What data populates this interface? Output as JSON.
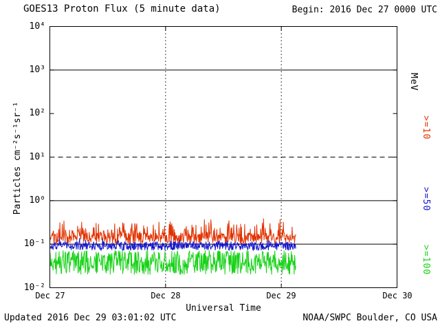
{
  "header": {
    "title": "GOES13 Proton Flux (5 minute data)",
    "begin_label": "Begin: 2016 Dec 27 0000 UTC"
  },
  "footer": {
    "updated": "Updated 2016 Dec 29 03:01:02 UTC",
    "source": "NOAA/SWPC Boulder, CO USA"
  },
  "right_axis": {
    "unit_label": "MeV"
  },
  "chart_data": {
    "type": "line",
    "title": "GOES13 Proton Flux (5 minute data)",
    "xlabel": "Universal Time",
    "ylabel": "Particles cm⁻²s⁻¹sr⁻¹",
    "y_scale": "log",
    "ylim": [
      0.01,
      10000
    ],
    "y_ticks": [
      "10⁴",
      "10³",
      "10²",
      "10¹",
      "10⁰",
      "10⁻¹",
      "10⁻²"
    ],
    "x_ticks": [
      "Dec 27",
      "Dec 28",
      "Dec 29",
      "Dec 30"
    ],
    "x_start": "2016 Dec 27 0000 UTC",
    "x_days": 3,
    "data_duration_hours": 51,
    "cadence_minutes": 5,
    "points_per_series": 612,
    "grid": {
      "solid_y": [
        1000,
        1,
        0.1
      ],
      "dashed_y": [
        10
      ],
      "dotted_x_days": [
        1,
        2
      ]
    },
    "series": [
      {
        "name": "Protons >=10 MeV",
        "label": ">=10",
        "color": "#e23200",
        "approx_flux_range": [
          0.08,
          0.42
        ],
        "log10_base": -0.86,
        "log10_jitter": 0.13,
        "spike_prob": 0.3,
        "spike_amp": 0.35,
        "seed": 101
      },
      {
        "name": "Protons >=50 MeV",
        "label": ">=50",
        "color": "#1414cc",
        "approx_flux_range": [
          0.06,
          0.13
        ],
        "log10_base": -1.04,
        "log10_jitter": 0.1,
        "spike_prob": 0.08,
        "spike_amp": 0.12,
        "seed": 202
      },
      {
        "name": "Protons >=100 MeV",
        "label": ">=100",
        "color": "#17d217",
        "approx_flux_range": [
          0.02,
          0.09
        ],
        "log10_base": -1.42,
        "log10_jitter": 0.28,
        "spike_prob": 0,
        "spike_amp": 0,
        "seed": 303
      }
    ]
  }
}
